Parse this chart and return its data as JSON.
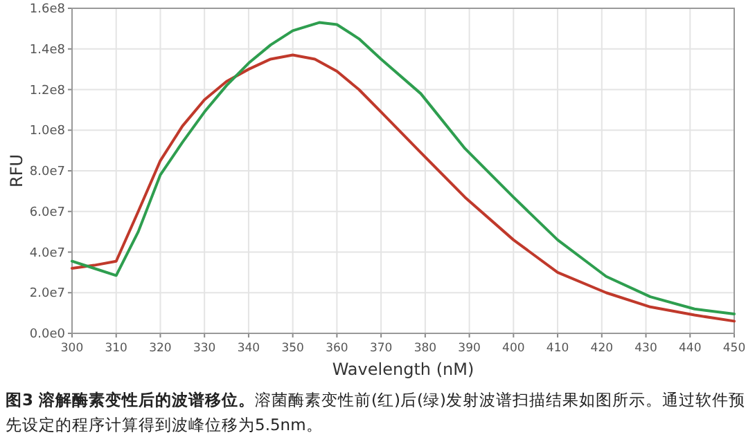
{
  "chart_data": {
    "type": "line",
    "title": "图3 溶解酶素变性后的波谱移位。",
    "annotations": [
      "溶菌酶素变性前(红)后(绿)发射波谱扫描结果如图所示。通过软件预先设定的程序计算得到波峰位移为5.5nm。"
    ],
    "xlabel": "Wavelength (nM)",
    "ylabel": "RFU",
    "xlim": [
      300,
      450
    ],
    "xticks": [
      300,
      310,
      320,
      330,
      340,
      350,
      360,
      370,
      380,
      390,
      400,
      410,
      420,
      430,
      440,
      450
    ],
    "ylim": [
      0,
      160000000
    ],
    "yticks": [
      {
        "value": 0,
        "label": "0.0e0"
      },
      {
        "value": 20000000,
        "label": "2.0e7"
      },
      {
        "value": 40000000,
        "label": "4.0e7"
      },
      {
        "value": 60000000,
        "label": "6.0e7"
      },
      {
        "value": 80000000,
        "label": "8.0e7"
      },
      {
        "value": 100000000,
        "label": "1.0e8"
      },
      {
        "value": 120000000,
        "label": "1.2e8"
      },
      {
        "value": 140000000,
        "label": "1.4e8"
      },
      {
        "value": 160000000,
        "label": "1.6e8"
      }
    ],
    "grid": true,
    "line_style": "solid",
    "marker": "none",
    "series": [
      {
        "color": "#c0392b",
        "x": [
          300,
          305,
          310,
          315,
          320,
          325,
          330,
          335,
          340,
          345,
          350,
          355,
          360,
          365,
          370,
          379,
          389,
          400,
          410,
          421,
          431,
          441,
          450
        ],
        "values": [
          32000000,
          33500000,
          35500000,
          60000000,
          85000000,
          102000000,
          115000000,
          124000000,
          130000000,
          135000000,
          137000000,
          135000000,
          129000000,
          120000000,
          109000000,
          89000000,
          67000000,
          46000000,
          30000000,
          20000000,
          13000000,
          9000000,
          6000000
        ]
      },
      {
        "color": "#2e9e4f",
        "x": [
          300,
          305,
          310,
          315,
          320,
          325,
          330,
          335,
          340,
          345,
          350,
          356,
          360,
          365,
          370,
          379,
          389,
          400,
          410,
          421,
          431,
          441,
          450
        ],
        "values": [
          35500000,
          32000000,
          28500000,
          50000000,
          78000000,
          94000000,
          109000000,
          122000000,
          133000000,
          142000000,
          149000000,
          153000000,
          152000000,
          145000000,
          135000000,
          118000000,
          91000000,
          67000000,
          46000000,
          28000000,
          18000000,
          12000000,
          9500000
        ]
      }
    ]
  }
}
